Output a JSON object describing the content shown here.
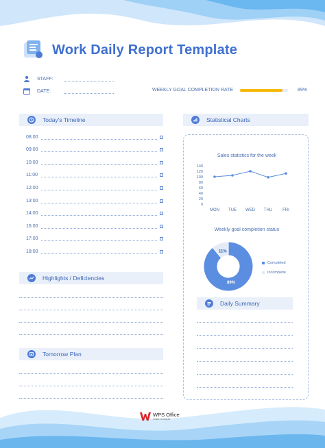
{
  "header": {
    "title": "Work Daily Report Template"
  },
  "meta": {
    "staff_label": "STAFF:",
    "date_label": "DATE:",
    "goal_label": "WEEKLY GOAL COMPLETION RATE",
    "goal_percent": "89%",
    "goal_value": 0.89
  },
  "timeline": {
    "heading": "Today's Timeline",
    "times": [
      "08:00",
      "09:00",
      "10:00",
      "11:00",
      "12:00",
      "13:00",
      "14:00",
      "16:00",
      "17:00",
      "18:00"
    ]
  },
  "highlights": {
    "heading": "Highlights / Deficiencies"
  },
  "tomorrow": {
    "heading": "Tomorrow Plan"
  },
  "stats": {
    "heading": "Statistical Charts",
    "daily_summary": "Daily Summary"
  },
  "chart_data": [
    {
      "type": "line",
      "title": "Sales statistics for the week",
      "categories": [
        "MON",
        "TUE",
        "WED",
        "THU",
        "FRI"
      ],
      "values": [
        100,
        105,
        120,
        98,
        112
      ],
      "yticks": [
        "140",
        "120",
        "100",
        "80",
        "60",
        "40",
        "20",
        "0"
      ],
      "ylim": [
        0,
        140
      ],
      "grid": false,
      "color": "#5b8ee0"
    },
    {
      "type": "pie",
      "title": "Weekly goal completion status",
      "labels": [
        "Completed",
        "Incomplete"
      ],
      "values": [
        89,
        11
      ],
      "value_labels": [
        "89%",
        "11%"
      ],
      "colors": [
        "#5b8ee0",
        "#e4ebf7"
      ],
      "legend": "right"
    }
  ],
  "footer": {
    "brand": "WPS Office",
    "tagline": "make it simple"
  }
}
